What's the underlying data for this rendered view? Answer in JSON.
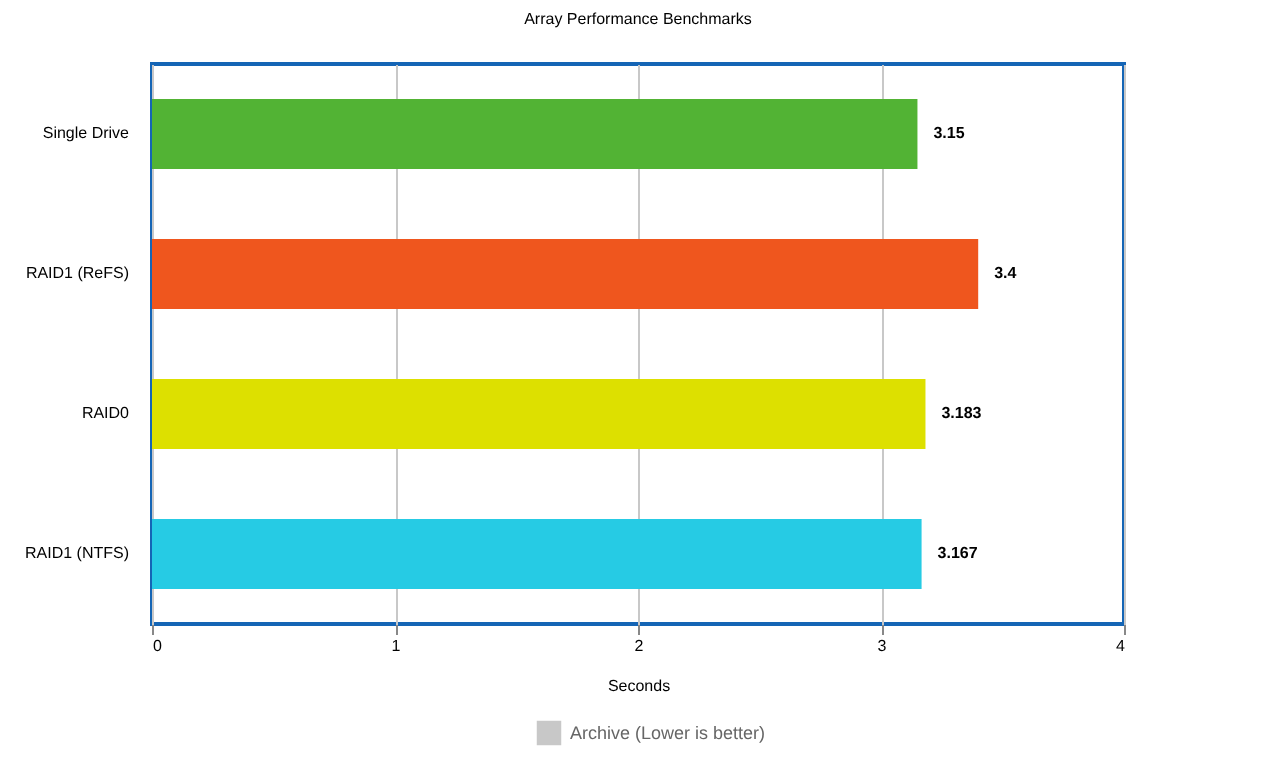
{
  "chart_data": {
    "type": "bar",
    "orientation": "horizontal",
    "title": "Array Performance Benchmarks",
    "xlabel": "Seconds",
    "categories": [
      "Single Drive",
      "RAID1 (ReFS)",
      "RAID0",
      "RAID1 (NTFS)"
    ],
    "series": [
      {
        "name": "Archive (Lower is better)",
        "values": [
          3.15,
          3.4,
          3.183,
          3.167
        ]
      }
    ],
    "colors": [
      "#52b334",
      "#ef561e",
      "#dde000",
      "#26cbe4"
    ],
    "xlim": [
      0,
      4
    ],
    "xticks": [
      0,
      1,
      2,
      3,
      4
    ],
    "grid": "x",
    "data_labels": true,
    "legend": "bottom"
  }
}
